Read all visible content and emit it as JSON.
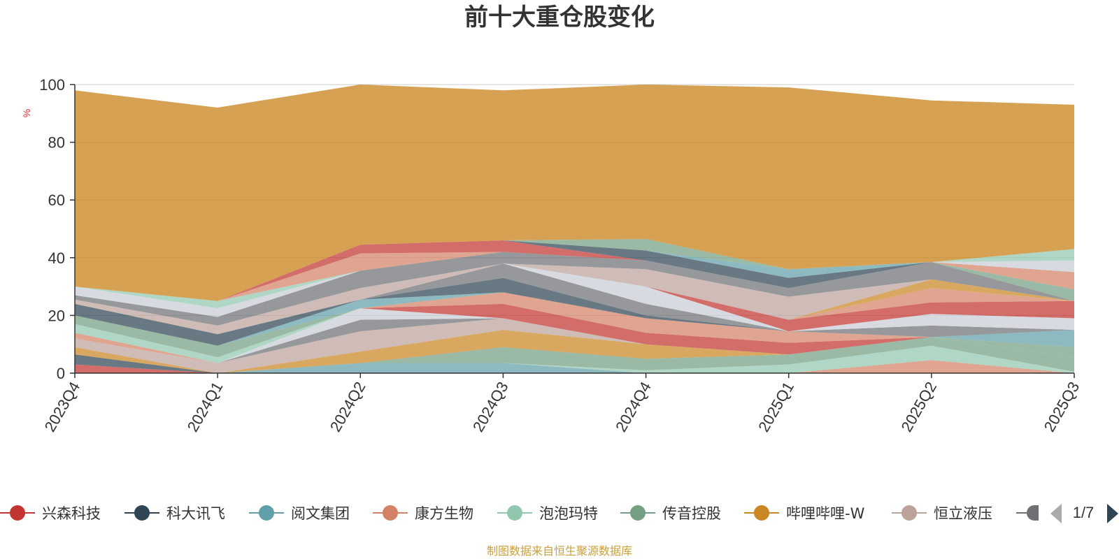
{
  "chart_data": {
    "type": "area",
    "title": "前十大重仓股变化",
    "unit": "%",
    "ylim": [
      0,
      100
    ],
    "y_ticks": [
      0,
      20,
      40,
      60,
      80,
      100
    ],
    "grid": true,
    "stacked": true,
    "x": [
      "2023Q4",
      "2024Q1",
      "2024Q2",
      "2024Q3",
      "2024Q4",
      "2025Q1",
      "2025Q2",
      "2025Q3"
    ],
    "series": [
      {
        "name": "兴森科技",
        "color": "#c23531",
        "values": [
          3,
          0,
          0,
          0,
          0,
          0,
          0,
          0
        ]
      },
      {
        "name": "科大讯飞",
        "color": "#2f4554",
        "values": [
          3.5,
          0,
          0,
          0,
          0,
          0,
          0,
          0
        ]
      },
      {
        "name": "阅文集团",
        "color": "#61a0a8",
        "values": [
          0,
          0,
          3.5,
          3.5,
          0,
          0,
          0,
          0
        ]
      },
      {
        "name": "康方生物",
        "color": "#d48265",
        "values": [
          0,
          0,
          0,
          0,
          0,
          0,
          4.5,
          0
        ]
      },
      {
        "name": "泡泡玛特",
        "color": "#91c7ae",
        "values": [
          0,
          0,
          0,
          0,
          1,
          3,
          5,
          0.5
        ]
      },
      {
        "name": "传音控股",
        "color": "#749f83",
        "values": [
          0,
          0,
          0,
          5.5,
          4,
          3.5,
          3,
          5
        ]
      },
      {
        "name": "哔哩哔哩-W",
        "color": "#ca8622",
        "values": [
          2.5,
          0,
          4,
          6,
          5,
          0,
          0,
          0
        ]
      },
      {
        "name": "恒立液压",
        "color": "#bda29a",
        "values": [
          3,
          3.5,
          7,
          4,
          0,
          0,
          0,
          0
        ]
      },
      {
        "name": "",
        "color": "#6e7074",
        "values": [
          0,
          0,
          4,
          0,
          0,
          0,
          0,
          0
        ]
      },
      {
        "name": "",
        "color": "#c8cdd6",
        "values": [
          0,
          0,
          4,
          0,
          0,
          0,
          0,
          0
        ]
      },
      {
        "name": "",
        "color": "#2f4554",
        "values": [
          0,
          0,
          0,
          0,
          0,
          0,
          0,
          0
        ]
      },
      {
        "name": "",
        "color": "#c23531",
        "values": [
          0,
          0,
          0,
          5,
          4,
          4,
          0,
          0
        ]
      },
      {
        "name": "",
        "color": "#d48265",
        "values": [
          2,
          0,
          0,
          4,
          5,
          4,
          0,
          0
        ]
      },
      {
        "name": "",
        "color": "#91c7ae",
        "values": [
          3,
          2,
          0,
          0,
          0,
          0,
          0,
          0
        ]
      },
      {
        "name": "",
        "color": "#749f83",
        "values": [
          3,
          4,
          0,
          0,
          0,
          0,
          0,
          3.5
        ]
      },
      {
        "name": "",
        "color": "#61a0a8",
        "values": [
          0,
          0,
          3,
          0,
          0,
          0,
          0,
          6
        ]
      },
      {
        "name": "",
        "color": "#2f4554",
        "values": [
          4,
          4,
          0,
          5,
          1,
          0,
          0,
          0
        ]
      },
      {
        "name": "",
        "color": "#bda29a",
        "values": [
          0,
          0,
          0,
          0,
          0,
          0,
          0,
          0
        ]
      },
      {
        "name": "",
        "color": "#6e7074",
        "values": [
          0,
          0,
          0,
          5,
          4,
          0,
          4,
          0
        ]
      },
      {
        "name": "",
        "color": "#c8cdd6",
        "values": [
          0,
          0,
          0,
          0,
          6,
          0,
          4,
          4
        ]
      },
      {
        "name": "",
        "color": "#c23531",
        "values": [
          0,
          0,
          0,
          0,
          0,
          4,
          4,
          6
        ]
      },
      {
        "name": "",
        "color": "#d48265",
        "values": [
          0,
          0,
          0,
          0,
          0,
          0,
          5,
          0
        ]
      },
      {
        "name": "",
        "color": "#ca8622",
        "values": [
          0,
          0,
          0,
          0,
          0,
          0,
          3,
          0
        ]
      },
      {
        "name": "",
        "color": "#bda29a",
        "values": [
          1.5,
          3,
          4,
          0,
          6,
          8,
          0,
          0
        ]
      },
      {
        "name": "",
        "color": "#6e7074",
        "values": [
          1.5,
          3,
          6,
          4,
          3,
          3,
          6,
          0
        ]
      },
      {
        "name": "",
        "color": "#749f83",
        "values": [
          0,
          0,
          0,
          0,
          0,
          0,
          0,
          4
        ]
      },
      {
        "name": "",
        "color": "#d48265",
        "values": [
          0,
          0,
          0,
          0,
          0,
          0,
          0,
          6
        ]
      },
      {
        "name": "",
        "color": "#c8cdd6",
        "values": [
          3,
          3,
          0,
          0,
          0,
          0,
          0,
          4
        ]
      },
      {
        "name": "",
        "color": "#91c7ae",
        "values": [
          0,
          2.5,
          0,
          0,
          0,
          0,
          0,
          4
        ]
      },
      {
        "name": "",
        "color": "#d48265",
        "values": [
          0,
          0,
          6,
          0,
          0,
          0,
          0,
          0
        ]
      },
      {
        "name": "",
        "color": "#c23531",
        "values": [
          0,
          0,
          3,
          4,
          0,
          0,
          0,
          0
        ]
      },
      {
        "name": "",
        "color": "#2f4554",
        "values": [
          0,
          0,
          0,
          0,
          3.5,
          3.5,
          0,
          0
        ]
      },
      {
        "name": "",
        "color": "#61a0a8",
        "values": [
          0,
          0,
          0,
          0,
          0,
          3,
          0,
          0
        ]
      },
      {
        "name": "",
        "color": "#749f83",
        "values": [
          0,
          0,
          0,
          0,
          4,
          0,
          0,
          0
        ]
      },
      {
        "name": "",
        "color": "#ca8622",
        "values": [
          68,
          67,
          56,
          52,
          58,
          63,
          56,
          50
        ]
      }
    ],
    "legend": {
      "position": "bottom",
      "items": [
        {
          "name": "兴森科技",
          "color": "#c23531"
        },
        {
          "name": "科大讯飞",
          "color": "#2f4554"
        },
        {
          "name": "阅文集团",
          "color": "#61a0a8"
        },
        {
          "name": "康方生物",
          "color": "#d48265"
        },
        {
          "name": "泡泡玛特",
          "color": "#91c7ae"
        },
        {
          "name": "传音控股",
          "color": "#749f83"
        },
        {
          "name": "哔哩哔哩-W",
          "color": "#ca8622"
        },
        {
          "name": "恒立液压",
          "color": "#bda29a"
        },
        {
          "name": "",
          "color": "#6e7074"
        }
      ],
      "page_label": "1/7"
    },
    "source_note": "制图数据来自恒生聚源数据库"
  }
}
